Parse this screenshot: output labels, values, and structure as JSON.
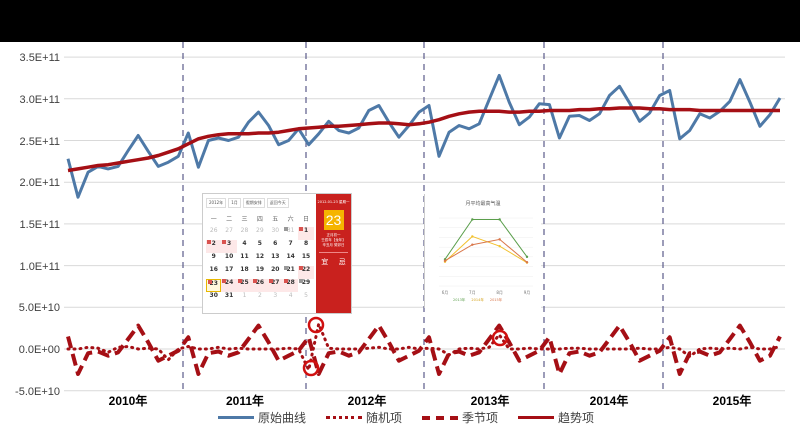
{
  "chart_data": {
    "type": "line",
    "title": "",
    "xlabel": "",
    "ylabel": "",
    "ylim": [
      -50000000000.0,
      350000000000.0
    ],
    "yticks": [
      "3.5E+11",
      "3.0E+11",
      "2.5E+11",
      "2.0E+11",
      "1.5E+11",
      "1.0E+11",
      "5.0E+10",
      "0.0E+00",
      "-5.0E+10"
    ],
    "categories": [
      "2010年",
      "2011年",
      "2012年",
      "2013年",
      "2014年",
      "2015年"
    ],
    "grid": true,
    "legend_position": "bottom",
    "x_unit": "month (72 months, 2010-01 to 2015-12)",
    "series": [
      {
        "name": "原始曲线",
        "style": "solid",
        "color": "#4e79a7",
        "values": [
          228000000000.0,
          182000000000.0,
          212000000000.0,
          219000000000.0,
          216000000000.0,
          219000000000.0,
          238000000000.0,
          256000000000.0,
          237000000000.0,
          219000000000.0,
          224000000000.0,
          231000000000.0,
          259000000000.0,
          218000000000.0,
          250000000000.0,
          253000000000.0,
          250000000000.0,
          254000000000.0,
          272000000000.0,
          284000000000.0,
          268000000000.0,
          245000000000.0,
          250000000000.0,
          264000000000.0,
          245000000000.0,
          258000000000.0,
          273000000000.0,
          262000000000.0,
          259000000000.0,
          265000000000.0,
          286000000000.0,
          292000000000.0,
          272000000000.0,
          254000000000.0,
          268000000000.0,
          284000000000.0,
          292000000000.0,
          231000000000.0,
          260000000000.0,
          268000000000.0,
          264000000000.0,
          270000000000.0,
          299000000000.0,
          328000000000.0,
          296000000000.0,
          269000000000.0,
          278000000000.0,
          294000000000.0,
          293000000000.0,
          253000000000.0,
          279000000000.0,
          280000000000.0,
          274000000000.0,
          282000000000.0,
          304000000000.0,
          315000000000.0,
          295000000000.0,
          273000000000.0,
          283000000000.0,
          304000000000.0,
          310000000000.0,
          252000000000.0,
          262000000000.0,
          282000000000.0,
          277000000000.0,
          285000000000.0,
          297000000000.0,
          323000000000.0,
          296000000000.0,
          267000000000.0,
          281000000000.0,
          301000000000.0
        ]
      },
      {
        "name": "随机项",
        "style": "dotted",
        "color": "#a50f15",
        "values": [
          0,
          0,
          2000000000.0,
          1000000000.0,
          -4000000000.0,
          2000000000.0,
          3000000000.0,
          0,
          1000000000.0,
          0,
          -13000000000.0,
          0,
          3000000000.0,
          0,
          0,
          2000000000.0,
          0,
          1000000000.0,
          0,
          0,
          0,
          0,
          1000000000.0,
          0,
          -25000000000.0,
          30000000000.0,
          1000000000.0,
          0,
          0,
          0,
          1000000000.0,
          2000000000.0,
          0,
          0,
          2000000000.0,
          0,
          1000000000.0,
          0,
          -7000000000.0,
          0,
          1000000000.0,
          0,
          2000000000.0,
          17000000000.0,
          0,
          0,
          1000000000.0,
          0,
          0,
          0,
          1000000000.0,
          1000000000.0,
          0,
          0,
          0,
          0,
          0,
          1000000000.0,
          0,
          0,
          2000000000.0,
          0,
          -9000000000.0,
          0,
          1000000000.0,
          0,
          1000000000.0,
          0,
          2000000000.0,
          0,
          0,
          3000000000.0
        ]
      },
      {
        "name": "季节项",
        "style": "dashed",
        "color": "#a50f15",
        "values": [
          15000000000.0,
          -30000000000.0,
          -5000000000.0,
          -3000000000.0,
          -8000000000.0,
          -4000000000.0,
          12000000000.0,
          28000000000.0,
          8000000000.0,
          -14000000000.0,
          -8000000000.0,
          -2000000000.0,
          14000000000.0,
          -30000000000.0,
          -5000000000.0,
          -3000000000.0,
          -8000000000.0,
          -4000000000.0,
          12000000000.0,
          28000000000.0,
          8000000000.0,
          -14000000000.0,
          -8000000000.0,
          -2000000000.0,
          14000000000.0,
          -30000000000.0,
          -5000000000.0,
          -3000000000.0,
          -8000000000.0,
          -4000000000.0,
          12000000000.0,
          28000000000.0,
          8000000000.0,
          -14000000000.0,
          -8000000000.0,
          -2000000000.0,
          14000000000.0,
          -30000000000.0,
          -5000000000.0,
          -3000000000.0,
          -8000000000.0,
          -4000000000.0,
          12000000000.0,
          28000000000.0,
          8000000000.0,
          -14000000000.0,
          -8000000000.0,
          -2000000000.0,
          14000000000.0,
          -30000000000.0,
          -5000000000.0,
          -3000000000.0,
          -8000000000.0,
          -4000000000.0,
          12000000000.0,
          28000000000.0,
          8000000000.0,
          -14000000000.0,
          -8000000000.0,
          -2000000000.0,
          14000000000.0,
          -30000000000.0,
          -5000000000.0,
          -3000000000.0,
          -8000000000.0,
          -4000000000.0,
          12000000000.0,
          28000000000.0,
          8000000000.0,
          -14000000000.0,
          -8000000000.0,
          15000000000.0
        ]
      },
      {
        "name": "趋势项",
        "style": "solid-thick",
        "color": "#a50f15",
        "values": [
          214000000000.0,
          216000000000.0,
          218000000000.0,
          220000000000.0,
          221000000000.0,
          223000000000.0,
          225000000000.0,
          227000000000.0,
          229000000000.0,
          232000000000.0,
          236000000000.0,
          240000000000.0,
          246000000000.0,
          252000000000.0,
          255000000000.0,
          257000000000.0,
          258000000000.0,
          258000000000.0,
          258000000000.0,
          259000000000.0,
          259000000000.0,
          260000000000.0,
          262000000000.0,
          264000000000.0,
          265000000000.0,
          266000000000.0,
          267000000000.0,
          267000000000.0,
          268000000000.0,
          269000000000.0,
          270000000000.0,
          271000000000.0,
          271000000000.0,
          270000000000.0,
          269000000000.0,
          270000000000.0,
          272000000000.0,
          275000000000.0,
          279000000000.0,
          282000000000.0,
          284000000000.0,
          285000000000.0,
          285000000000.0,
          285000000000.0,
          284000000000.0,
          284000000000.0,
          285000000000.0,
          285000000000.0,
          286000000000.0,
          286000000000.0,
          286000000000.0,
          287000000000.0,
          287000000000.0,
          288000000000.0,
          288000000000.0,
          289000000000.0,
          289000000000.0,
          289000000000.0,
          288000000000.0,
          288000000000.0,
          287000000000.0,
          287000000000.0,
          287000000000.0,
          286000000000.0,
          286000000000.0,
          286000000000.0,
          286000000000.0,
          286000000000.0,
          286000000000.0,
          286000000000.0,
          286000000000.0,
          286000000000.0
        ]
      }
    ],
    "annotations": [
      "red circles highlighting irregular random-component points near early 2012 and mid 2013"
    ]
  },
  "legend": {
    "items": [
      {
        "label": "原始曲线"
      },
      {
        "label": "随机项"
      },
      {
        "label": "季节项"
      },
      {
        "label": "趋势项"
      }
    ]
  },
  "calendar_overlay": {
    "year_select": "2012年",
    "month_select": "1月",
    "holiday_select": "假期安排",
    "today_button": "返回今天",
    "weekdays": [
      "一",
      "二",
      "三",
      "四",
      "五",
      "六",
      "日"
    ],
    "side_date": "2012-01-23 星期一",
    "side_day": "23",
    "side_lunar": "正月初一",
    "side_ganzhi1": "壬辰年【龙年】",
    "side_ganzhi2": "辛丑月 癸卯日",
    "yi": "宜",
    "ji": "忌",
    "rows": [
      [
        {
          "d": "26",
          "off": true
        },
        {
          "d": "27",
          "off": true
        },
        {
          "d": "28",
          "off": true
        },
        {
          "d": "29",
          "off": true
        },
        {
          "d": "30",
          "off": true
        },
        {
          "d": "31",
          "off": true,
          "tag": "g"
        },
        {
          "d": "1",
          "hol": true,
          "tag": "r"
        }
      ],
      [
        {
          "d": "2",
          "hol": true,
          "tag": "r"
        },
        {
          "d": "3",
          "hol": true,
          "tag": "r"
        },
        {
          "d": "4"
        },
        {
          "d": "5"
        },
        {
          "d": "6"
        },
        {
          "d": "7"
        },
        {
          "d": "8"
        }
      ],
      [
        {
          "d": "9"
        },
        {
          "d": "10"
        },
        {
          "d": "11"
        },
        {
          "d": "12"
        },
        {
          "d": "13"
        },
        {
          "d": "14"
        },
        {
          "d": "15"
        }
      ],
      [
        {
          "d": "16"
        },
        {
          "d": "17"
        },
        {
          "d": "18"
        },
        {
          "d": "19"
        },
        {
          "d": "20"
        },
        {
          "d": "21",
          "tag": "g"
        },
        {
          "d": "22",
          "hol": true,
          "tag": "r"
        }
      ],
      [
        {
          "d": "23",
          "hol": true,
          "sel": true,
          "tag": "r"
        },
        {
          "d": "24",
          "hol": true,
          "tag": "r"
        },
        {
          "d": "25",
          "hol": true,
          "tag": "r"
        },
        {
          "d": "26",
          "hol": true,
          "tag": "r"
        },
        {
          "d": "27",
          "hol": true,
          "tag": "r"
        },
        {
          "d": "28",
          "hol": true,
          "tag": "r"
        },
        {
          "d": "29",
          "tag": "g"
        }
      ],
      [
        {
          "d": "30"
        },
        {
          "d": "31"
        },
        {
          "d": "1",
          "off": true
        },
        {
          "d": "2",
          "off": true
        },
        {
          "d": "3",
          "off": true
        },
        {
          "d": "4",
          "off": true
        },
        {
          "d": "5",
          "off": true
        }
      ]
    ]
  },
  "mini_chart": {
    "title": "月平均最高气温",
    "categories": [
      "6月",
      "7月",
      "8月",
      "9月"
    ],
    "series": [
      {
        "name": "2013年",
        "color": "#5a9e4b",
        "values": [
          26.5,
          34.7,
          34.7,
          27.0
        ]
      },
      {
        "name": "2014年",
        "color": "#f2c12e",
        "values": [
          26.0,
          31.2,
          29.2,
          25.8
        ]
      },
      {
        "name": "2015年",
        "color": "#d9774b",
        "values": [
          26.2,
          29.5,
          30.6,
          25.9
        ]
      }
    ]
  }
}
